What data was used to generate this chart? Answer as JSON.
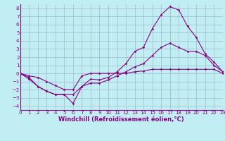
{
  "xlabel": "Windchill (Refroidissement éolien,°C)",
  "xlim": [
    0,
    23
  ],
  "ylim": [
    -4.5,
    8.5
  ],
  "xticks": [
    0,
    1,
    2,
    3,
    4,
    5,
    6,
    7,
    8,
    9,
    10,
    11,
    12,
    13,
    14,
    15,
    16,
    17,
    18,
    19,
    20,
    21,
    22,
    23
  ],
  "yticks": [
    -4,
    -3,
    -2,
    -1,
    0,
    1,
    2,
    3,
    4,
    5,
    6,
    7,
    8
  ],
  "background_color": "#c0eef2",
  "grid_color": "#a0b8d0",
  "line_color": "#880088",
  "line1_x": [
    0,
    1,
    2,
    3,
    4,
    5,
    6,
    7,
    8,
    9,
    10,
    11,
    12,
    13,
    14,
    15,
    16,
    17,
    18,
    19,
    20,
    21,
    22,
    23
  ],
  "line1_y": [
    0,
    -0.7,
    -1.6,
    -2.2,
    -2.6,
    -2.6,
    -3.7,
    -1.6,
    -0.7,
    -0.8,
    -0.5,
    0.2,
    1.2,
    2.7,
    3.2,
    5.5,
    7.2,
    8.2,
    7.8,
    5.8,
    4.4,
    2.4,
    1.4,
    0.2
  ],
  "line2_x": [
    0,
    1,
    2,
    3,
    4,
    5,
    6,
    7,
    8,
    9,
    10,
    11,
    12,
    13,
    14,
    15,
    16,
    17,
    18,
    19,
    20,
    21,
    22,
    23
  ],
  "line2_y": [
    0,
    -0.5,
    -1.6,
    -2.2,
    -2.6,
    -2.6,
    -2.6,
    -1.6,
    -1.2,
    -1.2,
    -0.8,
    -0.3,
    0.2,
    0.8,
    1.2,
    2.2,
    3.2,
    3.7,
    3.2,
    2.7,
    2.7,
    2.2,
    1.0,
    0.2
  ],
  "line3_x": [
    0,
    1,
    2,
    3,
    4,
    5,
    6,
    7,
    8,
    9,
    10,
    11,
    12,
    13,
    14,
    15,
    16,
    17,
    18,
    19,
    20,
    21,
    22,
    23
  ],
  "line3_y": [
    0,
    -0.3,
    -0.5,
    -1.0,
    -1.5,
    -2.0,
    -2.0,
    -0.3,
    0.0,
    0.0,
    0.0,
    0.0,
    0.0,
    0.2,
    0.3,
    0.5,
    0.5,
    0.5,
    0.5,
    0.5,
    0.5,
    0.5,
    0.5,
    0.0
  ],
  "marker": "D",
  "marker_size": 1.8,
  "line_width": 0.8,
  "tick_fontsize": 5.0,
  "label_fontsize": 6.0,
  "line_color_hex": "#880088"
}
